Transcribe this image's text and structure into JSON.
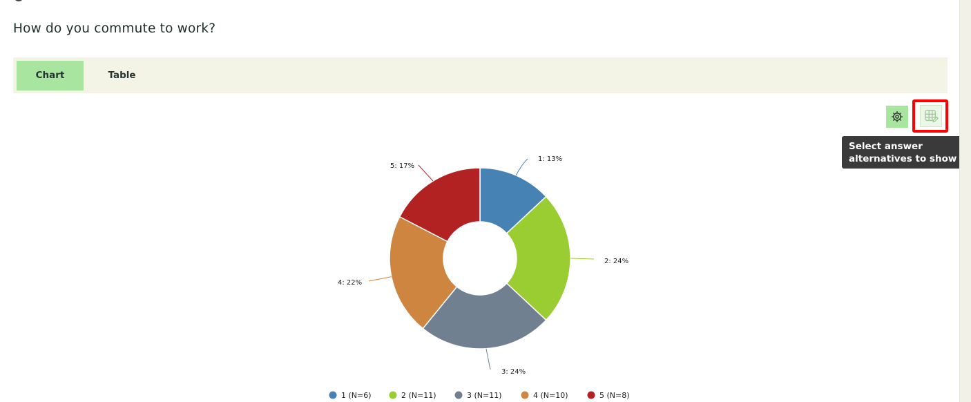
{
  "question": {
    "title": "How do you commute to work?"
  },
  "tabs": [
    {
      "label": "Chart",
      "active": true
    },
    {
      "label": "Table",
      "active": false
    }
  ],
  "toolbar": {
    "settings_icon": "gear-icon",
    "answers_icon": "table-edit-icon",
    "tooltip_line1": "Select answer",
    "tooltip_line2": "alternatives to show"
  },
  "chart_data": {
    "type": "pie",
    "donut": true,
    "slices": [
      {
        "label": "1: 13%",
        "legend": "1 (N=6)",
        "value": 6,
        "color": "#4682b4"
      },
      {
        "label": "2: 24%",
        "legend": "2 (N=11)",
        "value": 11,
        "color": "#9acd32"
      },
      {
        "label": "3: 24%",
        "legend": "3 (N=11)",
        "value": 11,
        "color": "#708090"
      },
      {
        "label": "4: 22%",
        "legend": "4 (N=10)",
        "value": 10,
        "color": "#cd853f"
      },
      {
        "label": "5: 17%",
        "legend": "5 (N=8)",
        "value": 8,
        "color": "#b22222"
      }
    ],
    "legend_position": "bottom"
  }
}
